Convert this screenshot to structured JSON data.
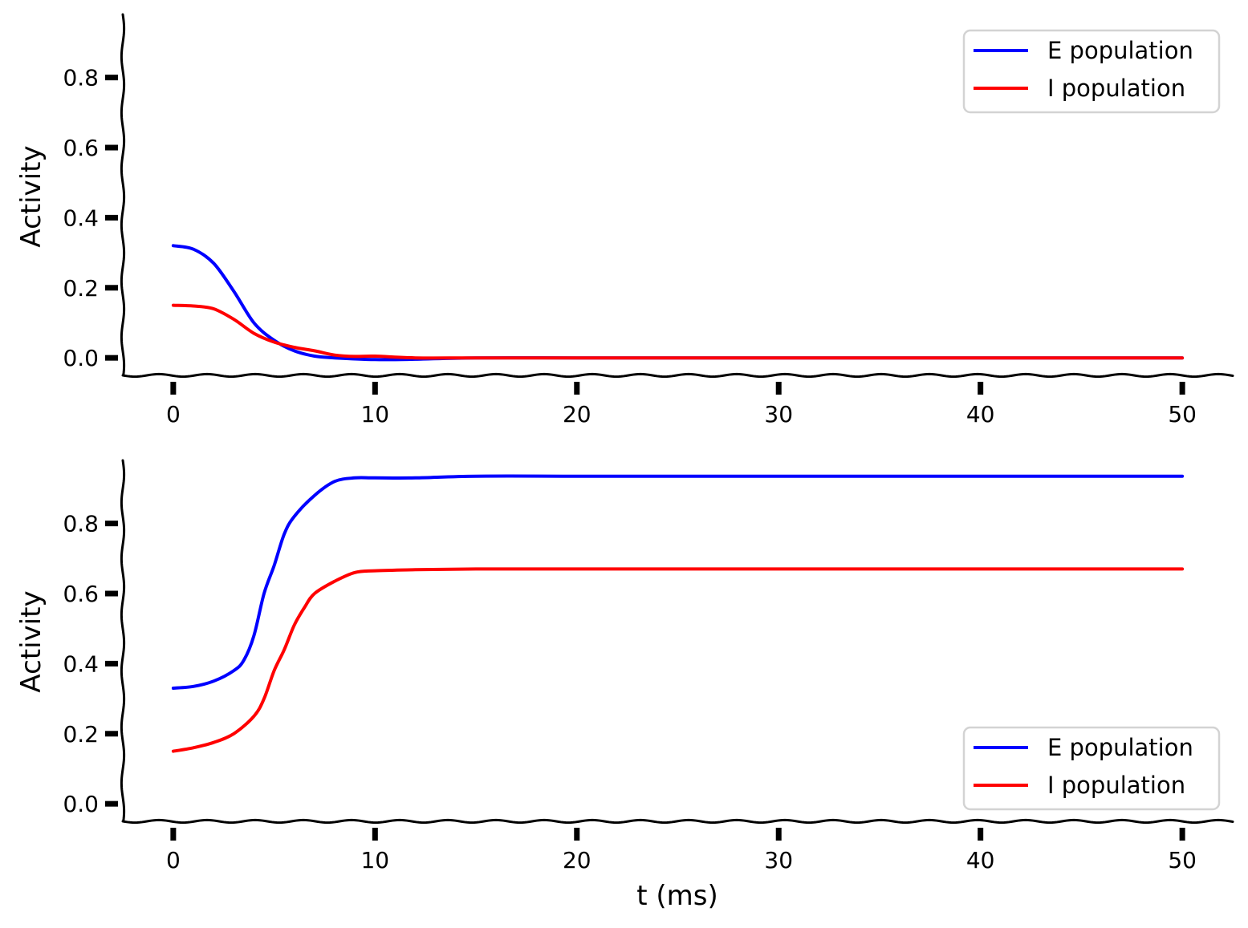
{
  "figure": {
    "xlabel": "t (ms)"
  },
  "chart_data": [
    {
      "type": "line",
      "xlabel": "",
      "ylabel": "Activity",
      "xlim": [
        -2.5,
        52.5
      ],
      "ylim": [
        -0.05,
        0.98
      ],
      "xticks": [
        0,
        10,
        20,
        30,
        40,
        50
      ],
      "xtick_labels": [
        "0",
        "10",
        "20",
        "30",
        "40",
        "50"
      ],
      "yticks": [
        0.0,
        0.2,
        0.4,
        0.6,
        0.8
      ],
      "ytick_labels": [
        "0.0",
        "0.2",
        "0.4",
        "0.6",
        "0.8"
      ],
      "grid": false,
      "legend_position": "upper-right",
      "series": [
        {
          "name": "E population",
          "color": "#0000ff",
          "x": [
            0,
            1,
            2,
            3,
            4,
            5,
            6,
            7,
            8,
            10,
            12,
            15,
            20,
            25,
            30,
            35,
            40,
            45,
            50
          ],
          "y": [
            0.32,
            0.31,
            0.27,
            0.19,
            0.1,
            0.05,
            0.02,
            0.005,
            0.0,
            -0.005,
            -0.004,
            0.0,
            0.0,
            0.0,
            0.0,
            0.0,
            0.0,
            0.0,
            0.0
          ]
        },
        {
          "name": "I population",
          "color": "#ff0000",
          "x": [
            0,
            1,
            2,
            3,
            4,
            5,
            6,
            7,
            8,
            9,
            10,
            12,
            15,
            20,
            25,
            30,
            35,
            40,
            45,
            50
          ],
          "y": [
            0.15,
            0.148,
            0.14,
            0.11,
            0.07,
            0.045,
            0.03,
            0.02,
            0.008,
            0.004,
            0.005,
            0.0,
            0.0,
            0.0,
            0.0,
            0.0,
            0.0,
            0.0,
            0.0,
            0.0
          ]
        }
      ]
    },
    {
      "type": "line",
      "xlabel": "t (ms)",
      "ylabel": "Activity",
      "xlim": [
        -2.5,
        52.5
      ],
      "ylim": [
        -0.05,
        0.98
      ],
      "xticks": [
        0,
        10,
        20,
        30,
        40,
        50
      ],
      "xtick_labels": [
        "0",
        "10",
        "20",
        "30",
        "40",
        "50"
      ],
      "yticks": [
        0.0,
        0.2,
        0.4,
        0.6,
        0.8
      ],
      "ytick_labels": [
        "0.0",
        "0.2",
        "0.4",
        "0.6",
        "0.8"
      ],
      "grid": false,
      "legend_position": "lower-right",
      "series": [
        {
          "name": "E population",
          "color": "#0000ff",
          "x": [
            0,
            1,
            2,
            3,
            3.5,
            4,
            4.5,
            5,
            5.5,
            6,
            7,
            8,
            9,
            10,
            12,
            15,
            20,
            25,
            30,
            35,
            40,
            45,
            50
          ],
          "y": [
            0.33,
            0.335,
            0.35,
            0.38,
            0.41,
            0.48,
            0.6,
            0.68,
            0.77,
            0.82,
            0.88,
            0.92,
            0.93,
            0.93,
            0.93,
            0.935,
            0.935,
            0.935,
            0.935,
            0.935,
            0.935,
            0.935,
            0.935
          ]
        },
        {
          "name": "I population",
          "color": "#ff0000",
          "x": [
            0,
            1,
            2,
            3,
            4,
            4.5,
            5,
            5.5,
            6,
            6.5,
            7,
            8,
            9,
            10,
            12,
            15,
            20,
            25,
            30,
            35,
            40,
            45,
            50
          ],
          "y": [
            0.15,
            0.16,
            0.175,
            0.2,
            0.25,
            0.3,
            0.38,
            0.44,
            0.51,
            0.56,
            0.6,
            0.635,
            0.66,
            0.665,
            0.668,
            0.67,
            0.67,
            0.67,
            0.67,
            0.67,
            0.67,
            0.67,
            0.67
          ]
        }
      ]
    }
  ]
}
